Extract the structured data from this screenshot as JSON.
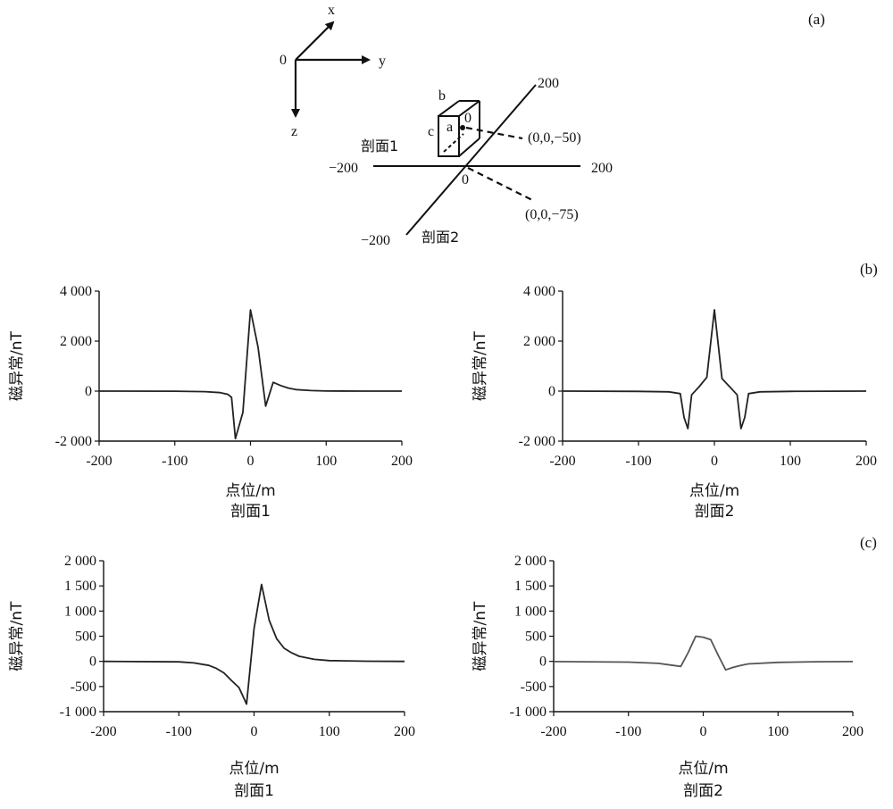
{
  "diagram": {
    "panel_letter": "(a)",
    "axis_x": "x",
    "axis_y": "y",
    "axis_z": "z",
    "origin": "0",
    "box_label_b": "b",
    "box_label_a": "a",
    "box_label_c": "c",
    "box_label_0": "0",
    "point1": "(0,0,−50)",
    "point2": "(0,0,−75)",
    "profile1": "剖面1",
    "profile2": "剖面2",
    "left_end": "−200",
    "right_end": "200",
    "top_end": "200",
    "bottom_end": "−200",
    "center": "0"
  },
  "panel_letters": {
    "b": "(b)",
    "c": "(c)"
  },
  "chart_data": [
    {
      "id": "b1",
      "type": "line",
      "xlabel": "点位/m",
      "ylabel": "磁异常/nT",
      "caption": "剖面1",
      "xlim": [
        -200,
        200
      ],
      "ylim": [
        -2000,
        4000
      ],
      "xticks": [
        -200,
        -100,
        0,
        100,
        200
      ],
      "xtick_labels": [
        "-200",
        "-100",
        "0",
        "100",
        "200"
      ],
      "yticks": [
        -2000,
        0,
        2000,
        4000
      ],
      "ytick_labels": [
        "-2 000",
        "0",
        "2 000",
        "4 000"
      ],
      "x": [
        -200,
        -100,
        -60,
        -40,
        -30,
        -25,
        -20,
        -10,
        0,
        10,
        20,
        30,
        40,
        50,
        60,
        80,
        100,
        150,
        200
      ],
      "y": [
        0,
        -5,
        -20,
        -60,
        -130,
        -250,
        -1900,
        -850,
        3250,
        1750,
        -600,
        350,
        220,
        120,
        60,
        20,
        5,
        0,
        0
      ]
    },
    {
      "id": "b2",
      "type": "line",
      "xlabel": "点位/m",
      "ylabel": "磁异常/nT",
      "caption": "剖面2",
      "xlim": [
        -200,
        200
      ],
      "ylim": [
        -2000,
        4000
      ],
      "xticks": [
        -200,
        -100,
        0,
        100,
        200
      ],
      "xtick_labels": [
        "-200",
        "-100",
        "0",
        "100",
        "200"
      ],
      "yticks": [
        -2000,
        0,
        2000,
        4000
      ],
      "ytick_labels": [
        "-2 000",
        "0",
        "2 000",
        "4 000"
      ],
      "x": [
        -200,
        -100,
        -60,
        -45,
        -40,
        -35,
        -30,
        -20,
        -10,
        0,
        10,
        20,
        30,
        35,
        40,
        45,
        60,
        100,
        200
      ],
      "y": [
        0,
        -10,
        -30,
        -100,
        -1050,
        -1500,
        -150,
        180,
        550,
        3250,
        500,
        180,
        -150,
        -1500,
        -1050,
        -100,
        -30,
        -10,
        0
      ]
    },
    {
      "id": "c1",
      "type": "line",
      "xlabel": "点位/m",
      "ylabel": "磁异常/nT",
      "caption": "剖面1",
      "xlim": [
        -200,
        200
      ],
      "ylim": [
        -1000,
        2000
      ],
      "xticks": [
        -200,
        -100,
        0,
        100,
        200
      ],
      "xtick_labels": [
        "-200",
        "-100",
        "0",
        "100",
        "200"
      ],
      "yticks": [
        -1000,
        -500,
        0,
        500,
        1000,
        1500,
        2000
      ],
      "ytick_labels": [
        "-1 000",
        "-500",
        "0",
        "500",
        "1 000",
        "1 500",
        "2 000"
      ],
      "x": [
        -200,
        -100,
        -80,
        -60,
        -50,
        -40,
        -30,
        -20,
        -10,
        0,
        10,
        20,
        30,
        40,
        50,
        60,
        80,
        100,
        150,
        200
      ],
      "y": [
        0,
        -10,
        -30,
        -80,
        -140,
        -230,
        -380,
        -520,
        -850,
        650,
        1530,
        820,
        450,
        260,
        170,
        100,
        40,
        15,
        3,
        0
      ]
    },
    {
      "id": "c2",
      "type": "line",
      "xlabel": "点位/m",
      "ylabel": "磁异常/nT",
      "caption": "剖面2",
      "xlim": [
        -200,
        200
      ],
      "ylim": [
        -1000,
        2000
      ],
      "xticks": [
        -200,
        -100,
        0,
        100,
        200
      ],
      "xtick_labels": [
        "-200",
        "-100",
        "0",
        "100",
        "200"
      ],
      "yticks": [
        -1000,
        -500,
        0,
        500,
        1000,
        1500,
        2000
      ],
      "ytick_labels": [
        "-1 000",
        "-500",
        "0",
        "500",
        "1 000",
        "1 500",
        "2 000"
      ],
      "x": [
        -200,
        -100,
        -60,
        -40,
        -30,
        -20,
        -10,
        0,
        10,
        20,
        30,
        40,
        50,
        60,
        100,
        150,
        200
      ],
      "y": [
        -5,
        -15,
        -40,
        -80,
        -100,
        180,
        500,
        480,
        430,
        120,
        -170,
        -120,
        -80,
        -50,
        -20,
        -8,
        -5
      ]
    }
  ]
}
